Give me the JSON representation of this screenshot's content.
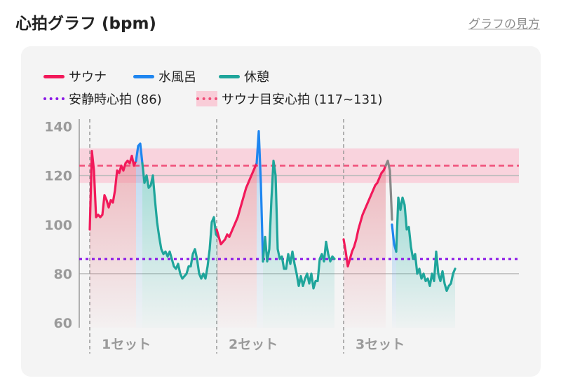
{
  "header": {
    "title": "心拍グラフ (bpm)",
    "link": "グラフの見方"
  },
  "legend": {
    "sauna": "サウナ",
    "cold_bath": "水風呂",
    "rest": "休憩",
    "resting_hr": "安静時心拍 (86)",
    "target_hr": "サウナ目安心拍 (117~131)"
  },
  "colors": {
    "sauna": "#f2195a",
    "cold_bath": "#1f86f0",
    "rest": "#1fa59b",
    "resting": "#8a17e6",
    "target": "#f0507a",
    "target_band": "#f9cdd8",
    "transition": "#888888"
  },
  "chart_data": {
    "type": "line",
    "ylim": [
      58,
      143
    ],
    "yticks": [
      60,
      80,
      100,
      120,
      140
    ],
    "ytick_labels": [
      "60",
      "80",
      "100",
      "120",
      "140"
    ],
    "resting_hr": 86,
    "target_range": [
      117,
      131
    ],
    "target_line": 124,
    "sets": [
      {
        "label": "1セット",
        "sauna": [
          [
            0,
            98
          ],
          [
            1,
            130
          ],
          [
            2,
            122
          ],
          [
            3,
            103
          ],
          [
            4,
            104
          ],
          [
            5,
            103
          ],
          [
            6,
            104
          ],
          [
            7,
            112
          ],
          [
            8,
            110
          ],
          [
            9,
            107
          ],
          [
            10,
            110
          ],
          [
            11,
            109
          ],
          [
            12,
            114
          ],
          [
            13,
            122
          ],
          [
            14,
            121
          ],
          [
            15,
            124
          ],
          [
            16,
            122
          ],
          [
            17,
            125
          ],
          [
            18,
            126
          ],
          [
            19,
            125
          ],
          [
            20,
            128
          ],
          [
            21,
            124
          ],
          [
            22,
            126
          ]
        ],
        "cold_bath": [
          [
            22,
            126
          ],
          [
            23,
            132
          ],
          [
            24,
            133
          ],
          [
            25,
            125
          ]
        ],
        "rest": [
          [
            25,
            125
          ],
          [
            26,
            117
          ],
          [
            27,
            120
          ],
          [
            28,
            115
          ],
          [
            29,
            116
          ],
          [
            30,
            120
          ],
          [
            31,
            110
          ],
          [
            32,
            101
          ],
          [
            33,
            95
          ],
          [
            34,
            90
          ],
          [
            35,
            88
          ],
          [
            36,
            89
          ],
          [
            37,
            87
          ],
          [
            38,
            89
          ],
          [
            39,
            86
          ],
          [
            40,
            83
          ],
          [
            41,
            82
          ],
          [
            42,
            84
          ],
          [
            43,
            80
          ],
          [
            44,
            78
          ],
          [
            45,
            79
          ],
          [
            46,
            80
          ],
          [
            47,
            83
          ],
          [
            48,
            83
          ],
          [
            49,
            88
          ],
          [
            50,
            90
          ],
          [
            51,
            86
          ],
          [
            52,
            80
          ],
          [
            53,
            78
          ],
          [
            54,
            80
          ],
          [
            55,
            78
          ],
          [
            56,
            83
          ],
          [
            57,
            90
          ],
          [
            58,
            101
          ],
          [
            59,
            103
          ],
          [
            60,
            96
          ],
          [
            61,
            95
          ]
        ]
      },
      {
        "label": "2セット",
        "sauna": [
          [
            0,
            98
          ],
          [
            1,
            95
          ],
          [
            2,
            92
          ],
          [
            3,
            93
          ],
          [
            4,
            94
          ],
          [
            5,
            96
          ],
          [
            6,
            95
          ],
          [
            7,
            97
          ],
          [
            8,
            99
          ],
          [
            9,
            101
          ],
          [
            10,
            103
          ],
          [
            11,
            106
          ],
          [
            12,
            109
          ],
          [
            13,
            112
          ],
          [
            14,
            115
          ],
          [
            15,
            117
          ],
          [
            16,
            119
          ],
          [
            17,
            121
          ],
          [
            18,
            123
          ],
          [
            19,
            125
          ]
        ],
        "cold_bath": [
          [
            19,
            125
          ],
          [
            20,
            138
          ],
          [
            21,
            117
          ],
          [
            22,
            85
          ]
        ],
        "rest": [
          [
            22,
            85
          ],
          [
            23,
            95
          ],
          [
            24,
            85
          ],
          [
            25,
            90
          ],
          [
            26,
            110
          ],
          [
            27,
            126
          ],
          [
            28,
            120
          ],
          [
            29,
            90
          ],
          [
            30,
            86
          ],
          [
            31,
            87
          ],
          [
            32,
            82
          ],
          [
            33,
            82
          ],
          [
            34,
            88
          ],
          [
            35,
            84
          ],
          [
            36,
            89
          ],
          [
            37,
            84
          ],
          [
            38,
            80
          ],
          [
            39,
            75
          ],
          [
            40,
            79
          ],
          [
            41,
            75
          ],
          [
            42,
            78
          ],
          [
            43,
            80
          ],
          [
            44,
            76
          ],
          [
            45,
            80
          ],
          [
            46,
            74
          ],
          [
            47,
            77
          ],
          [
            48,
            77
          ],
          [
            49,
            86
          ],
          [
            50,
            88
          ],
          [
            51,
            85
          ],
          [
            52,
            93
          ],
          [
            53,
            88
          ],
          [
            54,
            85
          ],
          [
            55,
            87
          ],
          [
            56,
            86
          ]
        ]
      },
      {
        "label": "3セット",
        "sauna": [
          [
            0,
            94
          ],
          [
            1,
            89
          ],
          [
            2,
            83
          ],
          [
            3,
            86
          ],
          [
            4,
            89
          ],
          [
            5,
            91
          ],
          [
            6,
            94
          ],
          [
            7,
            98
          ],
          [
            8,
            101
          ],
          [
            9,
            104
          ],
          [
            10,
            106
          ],
          [
            11,
            108
          ],
          [
            12,
            110
          ],
          [
            13,
            112
          ],
          [
            14,
            114
          ],
          [
            15,
            116
          ],
          [
            16,
            117
          ],
          [
            17,
            119
          ],
          [
            18,
            121
          ],
          [
            19,
            122
          ],
          [
            20,
            124
          ]
        ],
        "transition": [
          [
            20,
            124
          ],
          [
            21,
            126
          ],
          [
            22,
            122
          ],
          [
            23,
            102
          ]
        ],
        "cold_bath": [
          [
            23,
            100
          ],
          [
            24,
            92
          ],
          [
            25,
            89
          ]
        ],
        "rest": [
          [
            25,
            89
          ],
          [
            26,
            111
          ],
          [
            27,
            106
          ],
          [
            28,
            111
          ],
          [
            29,
            108
          ],
          [
            30,
            98
          ],
          [
            31,
            99
          ],
          [
            32,
            91
          ],
          [
            33,
            86
          ],
          [
            34,
            88
          ],
          [
            35,
            80
          ],
          [
            36,
            82
          ],
          [
            37,
            78
          ],
          [
            38,
            80
          ],
          [
            39,
            77
          ],
          [
            40,
            78
          ],
          [
            41,
            75
          ],
          [
            42,
            80
          ],
          [
            43,
            77
          ],
          [
            44,
            89
          ],
          [
            45,
            80
          ],
          [
            46,
            77
          ],
          [
            47,
            81
          ],
          [
            48,
            76
          ],
          [
            49,
            73
          ],
          [
            50,
            75
          ],
          [
            51,
            76
          ],
          [
            52,
            80
          ],
          [
            53,
            82
          ]
        ]
      }
    ]
  }
}
